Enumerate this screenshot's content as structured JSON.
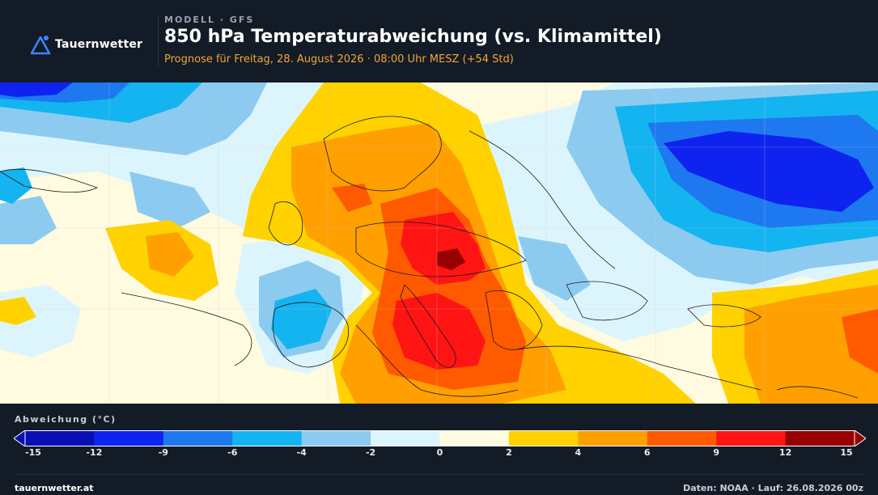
{
  "header": {
    "logo_text": "Tauernwetter",
    "eyebrow": "MODELL · GFS",
    "title": "850 hPa Temperaturabweichung (vs. Klimamittel)",
    "subtitle": "Prognose für Freitag, 28. August 2026 · 08:00 Uhr MESZ  (+54 Std)"
  },
  "legend": {
    "label": "Abweichung (°C)",
    "ticks": [
      "-15",
      "-12",
      "-9",
      "-6",
      "-4",
      "-2",
      "0",
      "2",
      "4",
      "6",
      "9",
      "12",
      "15"
    ],
    "colors": [
      "#0a0fb4",
      "#0f23f0",
      "#1e78f0",
      "#14b4f0",
      "#8ccbef",
      "#dcf5fc",
      "#fffbe0",
      "#ffd200",
      "#ffa000",
      "#ff5a00",
      "#ff1414",
      "#960000"
    ]
  },
  "map_colors": {
    "ocean_base": "#fffbe0",
    "coast_lines": "#1a1a1a"
  },
  "footer": {
    "left": "tauernwetter.at",
    "right": "Daten: NOAA · Lauf: 26.08.2026 00z"
  }
}
